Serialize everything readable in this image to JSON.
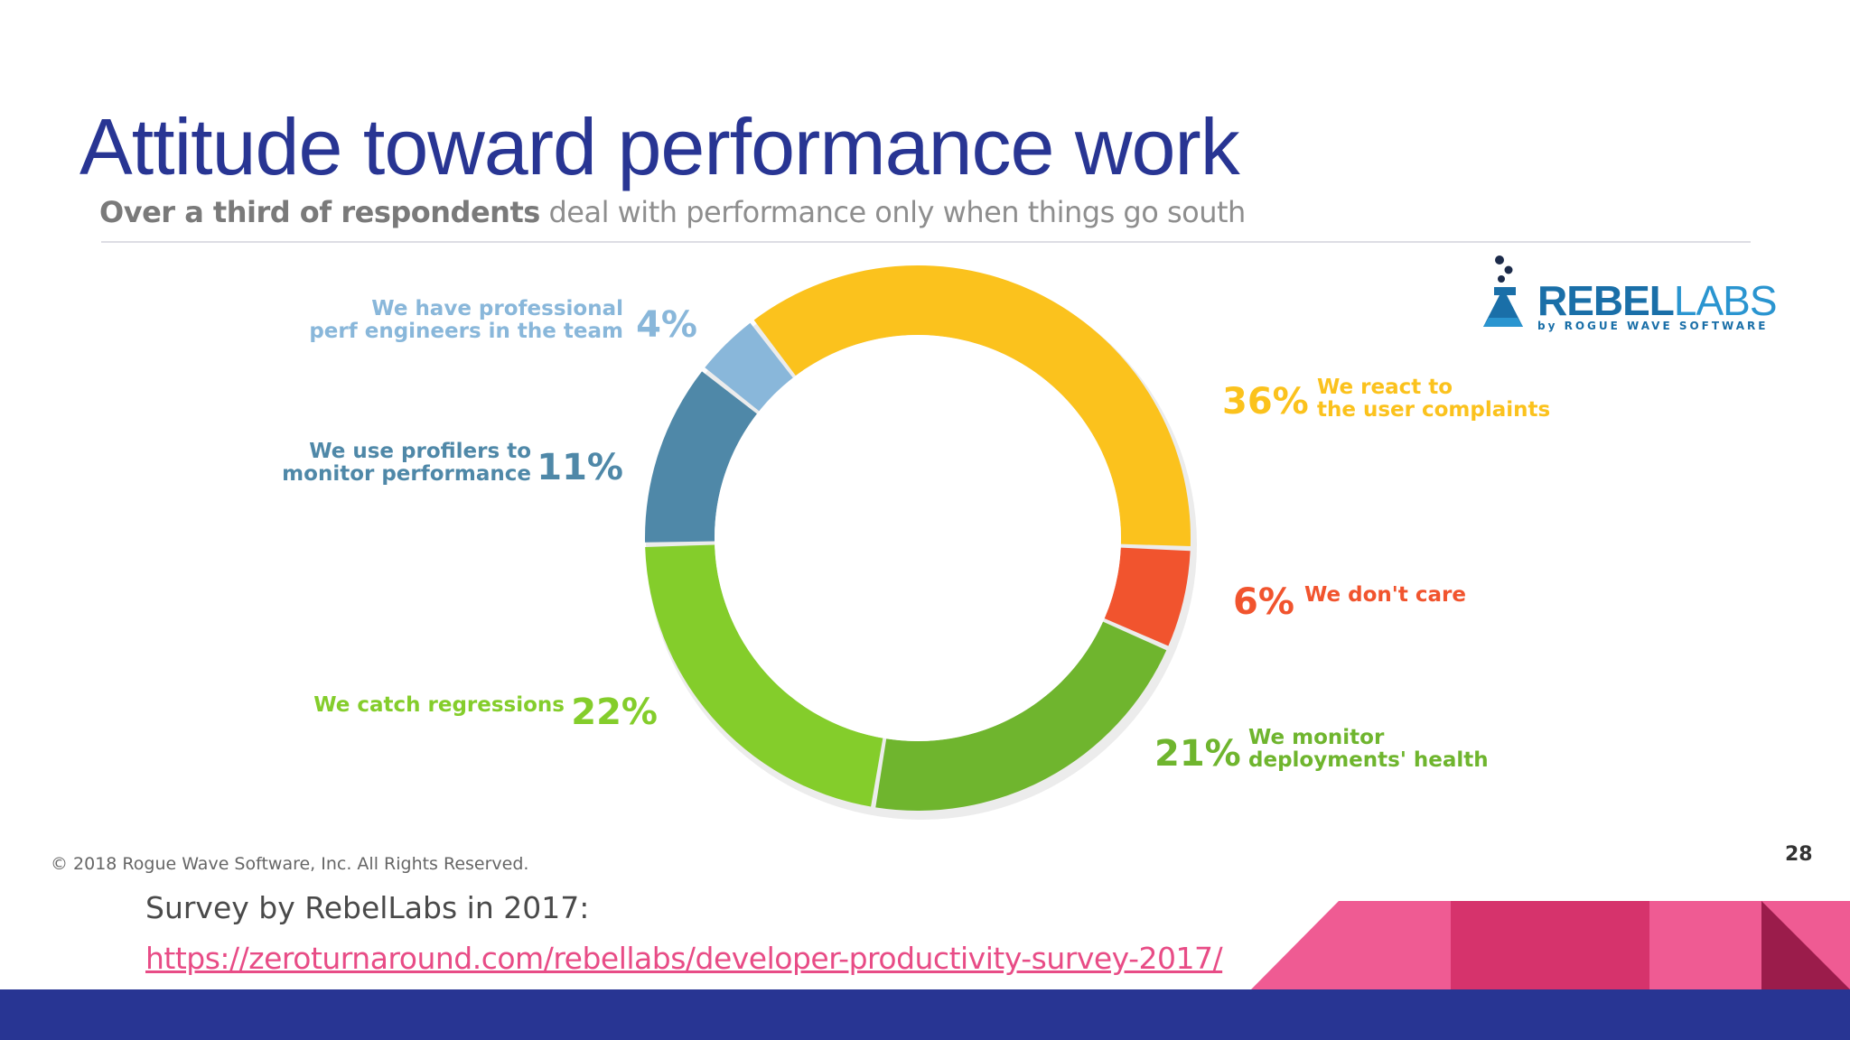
{
  "slide": {
    "title": "Attitude toward performance work",
    "subtitle_bold": "Over a third of respondents",
    "subtitle_rest": " deal with performance only when things go south",
    "copyright": "© 2018 Rogue Wave Software, Inc. All Rights Reserved.",
    "page_number": "28",
    "source_text": "Survey by RebelLabs in 2017:",
    "source_link": "https://zeroturnaround.com/rebellabs/developer-productivity-survey-2017/"
  },
  "logo": {
    "word_bold": "REBEL",
    "word_light": "LABS",
    "sub": "by ROGUE WAVE SOFTWARE",
    "icon": "flask-icon"
  },
  "colors": {
    "title": "#283593",
    "footer_bar": "#283593",
    "link": "#e84c86",
    "deco_pink": "#ef5b93",
    "deco_dark_pink": "#d6336c",
    "deco_maroon": "#9b1c4b"
  },
  "chart_data": {
    "type": "pie",
    "donut": true,
    "title": "",
    "series": [
      {
        "label": "We react to the user complaints",
        "lines": [
          "We react to",
          "the user complaints"
        ],
        "value": 36,
        "display": "36%",
        "color": "#fbc21d"
      },
      {
        "label": "We don't care",
        "lines": [
          "We don't care"
        ],
        "value": 6,
        "display": "6%",
        "color": "#f1542e"
      },
      {
        "label": "We monitor deployments' health",
        "lines": [
          "We monitor",
          "deployments' health"
        ],
        "value": 21,
        "display": "21%",
        "color": "#6fb52e"
      },
      {
        "label": "We catch regressions",
        "lines": [
          "We catch regressions"
        ],
        "value": 22,
        "display": "22%",
        "color": "#84cd2b"
      },
      {
        "label": "We use profilers to monitor performance",
        "lines": [
          "We use profilers to",
          "monitor performance"
        ],
        "value": 11,
        "display": "11%",
        "color": "#4f88a8"
      },
      {
        "label": "We have professional perf engineers in the team",
        "lines": [
          "We have professional",
          "perf engineers in the team"
        ],
        "value": 4,
        "display": "4%",
        "color": "#89b7da"
      }
    ]
  }
}
